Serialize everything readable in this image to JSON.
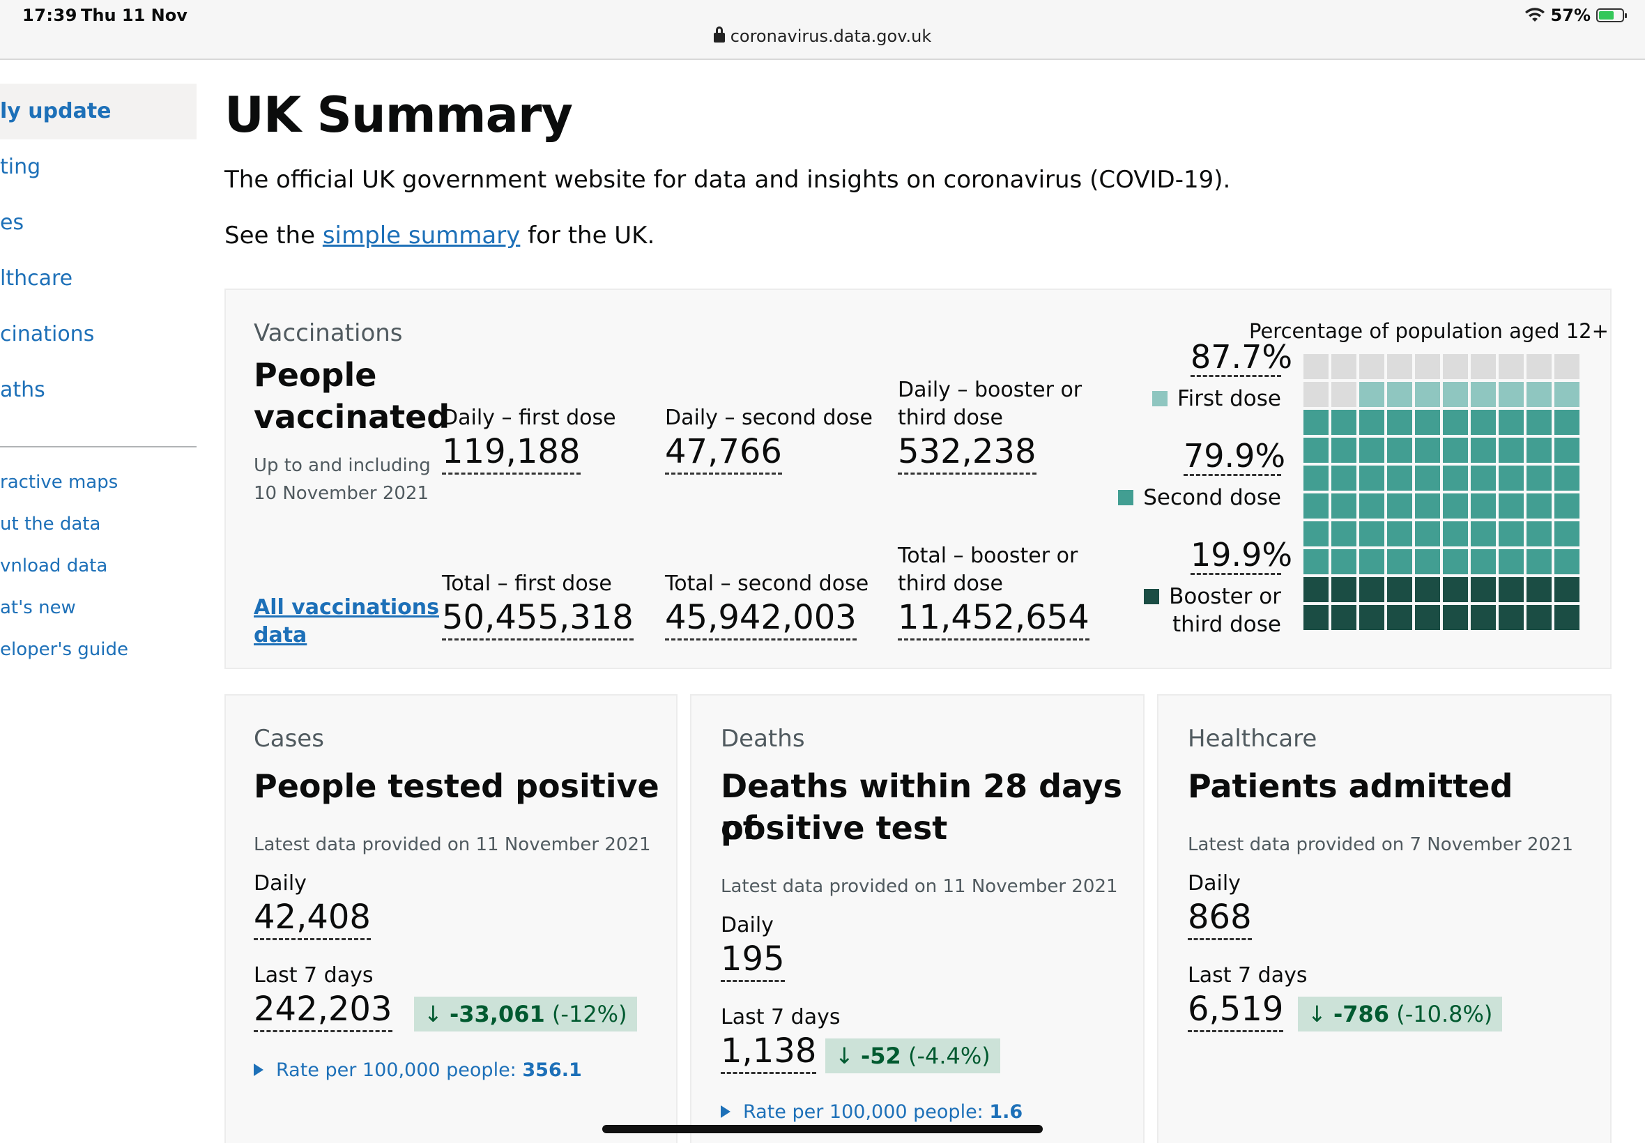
{
  "status_bar": {
    "time": "17:39",
    "date": "Thu 11 Nov",
    "url": "coronavirus.data.gov.uk",
    "battery": "57%",
    "wifi_icon": "wifi-icon",
    "lock_icon": "lock-icon",
    "battery_icon": "battery-charging-icon"
  },
  "sidebar": {
    "items": [
      {
        "label": "ly update",
        "active": true
      },
      {
        "label": "ting"
      },
      {
        "label": "es"
      },
      {
        "label": "lthcare"
      },
      {
        "label": "cinations"
      },
      {
        "label": "aths"
      }
    ],
    "sub_items": [
      {
        "label": "ractive maps"
      },
      {
        "label": "ut the data"
      },
      {
        "label": "vnload data"
      },
      {
        "label": "at's new"
      },
      {
        "label": "eloper's guide"
      }
    ]
  },
  "page": {
    "title": "UK Summary",
    "intro": "The official UK government website for data and insights on coronavirus (COVID-19).",
    "summary_prefix": "See the ",
    "summary_link": "simple summary",
    "summary_suffix": " for the UK."
  },
  "vaccinations": {
    "label": "Vaccinations",
    "heading_line1": "People",
    "heading_line2": "vaccinated",
    "meta_line1": "Up to and including",
    "meta_line2": "10 November 2021",
    "all_link_line1": "All vaccinations",
    "all_link_line2": "data",
    "daily_first_label": "Daily – first dose",
    "daily_first_value": "119,188",
    "daily_second_label": "Daily – second dose",
    "daily_second_value": "47,766",
    "daily_booster_label1": "Daily – booster or",
    "daily_booster_label2": "third dose",
    "daily_booster_value": "532,238",
    "total_first_label": "Total – first dose",
    "total_first_value": "50,455,318",
    "total_second_label": "Total – second dose",
    "total_second_value": "45,942,003",
    "total_booster_label1": "Total – booster or",
    "total_booster_label2": "third dose",
    "total_booster_value": "11,452,654",
    "waffle": {
      "title": "Percentage of population aged 12+",
      "first_pct": "87.7%",
      "first_label": "First dose",
      "second_pct": "79.9%",
      "second_label": "Second dose",
      "booster_pct": "19.9%",
      "booster_label1": "Booster or",
      "booster_label2": "third dose",
      "first_value": 87.7,
      "second_value": 79.9,
      "booster_value": 19.9,
      "colors": {
        "empty": "#dcdcdc",
        "first": "#8fc6c0",
        "second": "#429e92",
        "booster": "#1b4d44"
      }
    }
  },
  "cases": {
    "label": "Cases",
    "heading": "People tested positive",
    "meta": "Latest data provided on 11 November 2021",
    "daily_label": "Daily",
    "daily_value": "42,408",
    "week_label": "Last 7 days",
    "week_value": "242,203",
    "change_value": "-33,061",
    "change_pct": "(-12%)",
    "rate_label": "Rate per 100,000 people: ",
    "rate_value": "356.1"
  },
  "deaths": {
    "label": "Deaths",
    "heading_line1": "Deaths within 28 days of",
    "heading_line2": "positive test",
    "meta": "Latest data provided on 11 November 2021",
    "daily_label": "Daily",
    "daily_value": "195",
    "week_label": "Last 7 days",
    "week_value": "1,138",
    "change_value": "-52",
    "change_pct": "(-4.4%)",
    "rate_label": "Rate per 100,000 people: ",
    "rate_value": "1.6"
  },
  "healthcare": {
    "label": "Healthcare",
    "heading": "Patients admitted",
    "meta": "Latest data provided on 7 November 2021",
    "daily_label": "Daily",
    "daily_value": "868",
    "week_label": "Last 7 days",
    "week_value": "6,519",
    "change_value": "-786",
    "change_pct": "(-10.8%)"
  }
}
